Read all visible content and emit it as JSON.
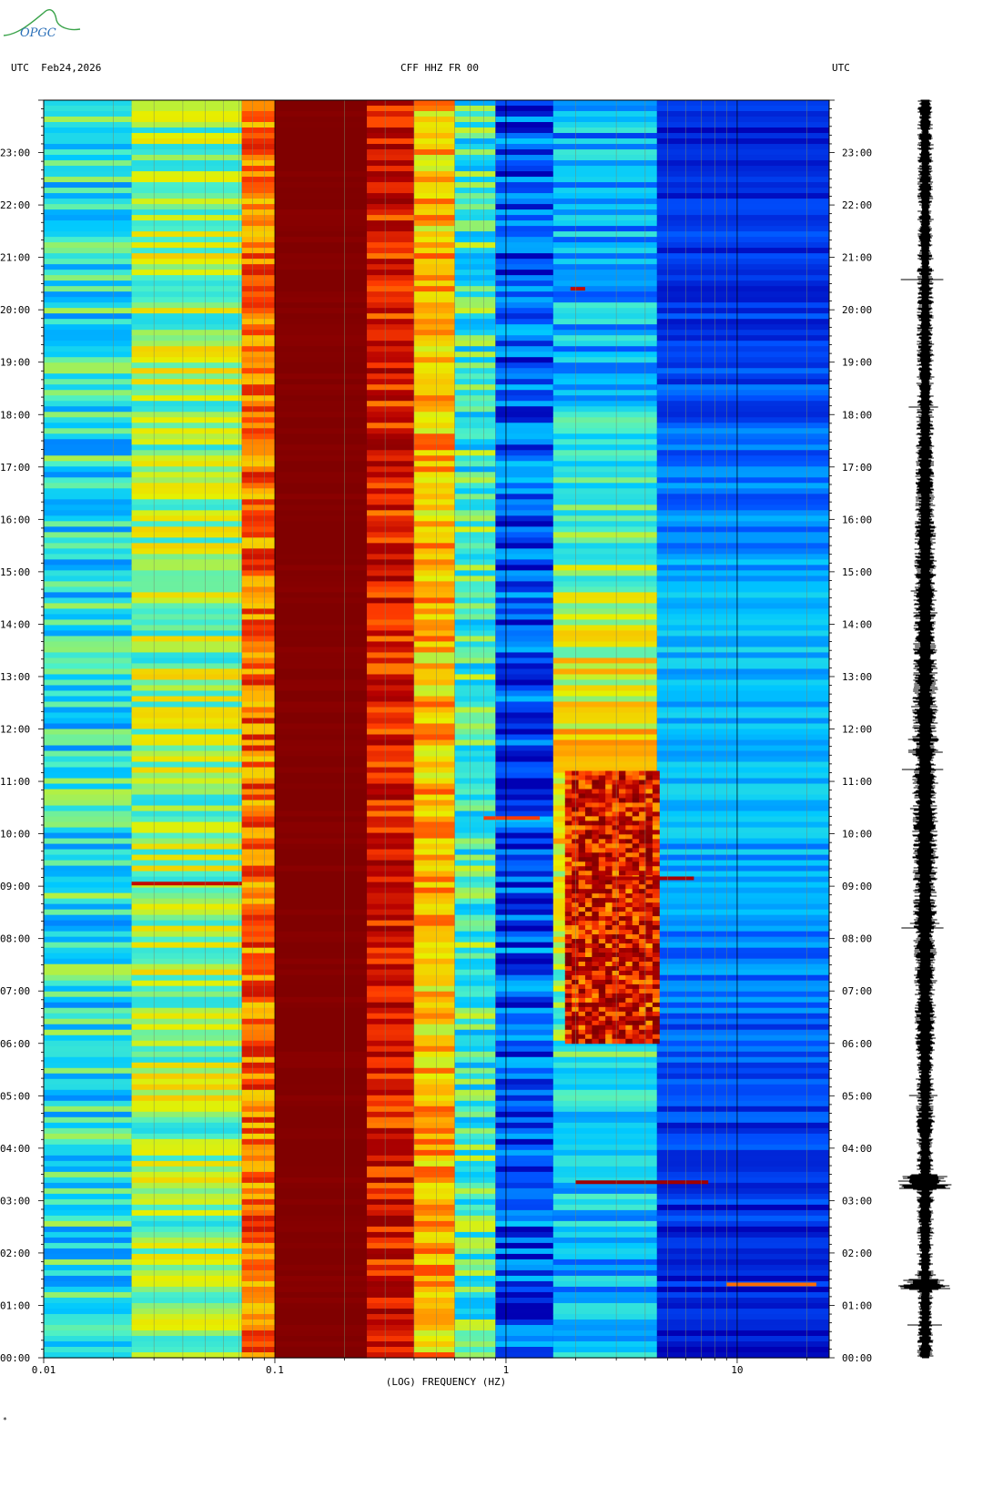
{
  "logo": {
    "text": "OPGC",
    "color": "#2a6fb8",
    "accent": "#3aa34a"
  },
  "header": {
    "left": "UTC  Feb24,2026",
    "center": "CFF HHZ FR 00",
    "right": "UTC"
  },
  "footer_mark": "*",
  "chart_data": {
    "type": "heatmap",
    "title": "CFF HHZ FR 00",
    "date": "Feb24,2026",
    "xlabel": "(LOG) FREQUENCY (HZ)",
    "ylabel_left": "UTC",
    "ylabel_right": "UTC",
    "x_scale": "log",
    "x_range_hz": [
      0.01,
      25
    ],
    "x_ticks": [
      {
        "value": 0.01,
        "label": "0.01"
      },
      {
        "value": 0.1,
        "label": "0.1"
      },
      {
        "value": 1,
        "label": "1"
      },
      {
        "value": 10,
        "label": "10"
      }
    ],
    "y_range_hours": [
      0,
      24
    ],
    "y_ticks": [
      "00:00",
      "01:00",
      "02:00",
      "03:00",
      "04:00",
      "05:00",
      "06:00",
      "07:00",
      "08:00",
      "09:00",
      "10:00",
      "11:00",
      "12:00",
      "13:00",
      "14:00",
      "15:00",
      "16:00",
      "17:00",
      "18:00",
      "19:00",
      "20:00",
      "21:00",
      "22:00",
      "23:00"
    ],
    "colormap": [
      "#0000b4",
      "#0050ff",
      "#00c8ff",
      "#4cf0c8",
      "#e6f000",
      "#ffb400",
      "#ff3c00",
      "#b40000",
      "#800000"
    ],
    "energy_bands": [
      {
        "f_start": 0.01,
        "f_end": 0.024,
        "level": 0.32
      },
      {
        "f_start": 0.024,
        "f_end": 0.072,
        "level": 0.44
      },
      {
        "f_start": 0.072,
        "f_end": 0.1,
        "level": 0.7
      },
      {
        "f_start": 0.1,
        "f_end": 0.25,
        "level": 1.0
      },
      {
        "f_start": 0.25,
        "f_end": 0.4,
        "level": 0.82
      },
      {
        "f_start": 0.4,
        "f_end": 0.6,
        "level": 0.6
      },
      {
        "f_start": 0.6,
        "f_end": 0.9,
        "level": 0.35
      },
      {
        "f_start": 0.9,
        "f_end": 1.6,
        "level": 0.12
      },
      {
        "f_start": 1.6,
        "f_end": 4.5,
        "level": 0.22
      },
      {
        "f_start": 4.5,
        "f_end": 25,
        "level": 0.05
      }
    ],
    "microseism_patch": {
      "f_start": 1.8,
      "f_end": 4.6,
      "t_start_h": 6.0,
      "t_end_h": 11.2,
      "level": 0.88
    },
    "events": [
      {
        "time_h": 10.3,
        "f_start": 0.8,
        "f_end": 1.4,
        "level": 0.75
      },
      {
        "time_h": 9.05,
        "f_start": 0.024,
        "f_end": 0.072,
        "level": 0.85
      },
      {
        "time_h": 9.15,
        "f_start": 2.6,
        "f_end": 6.5,
        "level": 0.9
      },
      {
        "time_h": 3.35,
        "f_start": 2.0,
        "f_end": 7.5,
        "level": 0.92
      },
      {
        "time_h": 1.4,
        "f_start": 9.0,
        "f_end": 22,
        "level": 0.7
      },
      {
        "time_h": 20.4,
        "f_start": 1.9,
        "f_end": 2.2,
        "level": 0.85
      }
    ]
  }
}
